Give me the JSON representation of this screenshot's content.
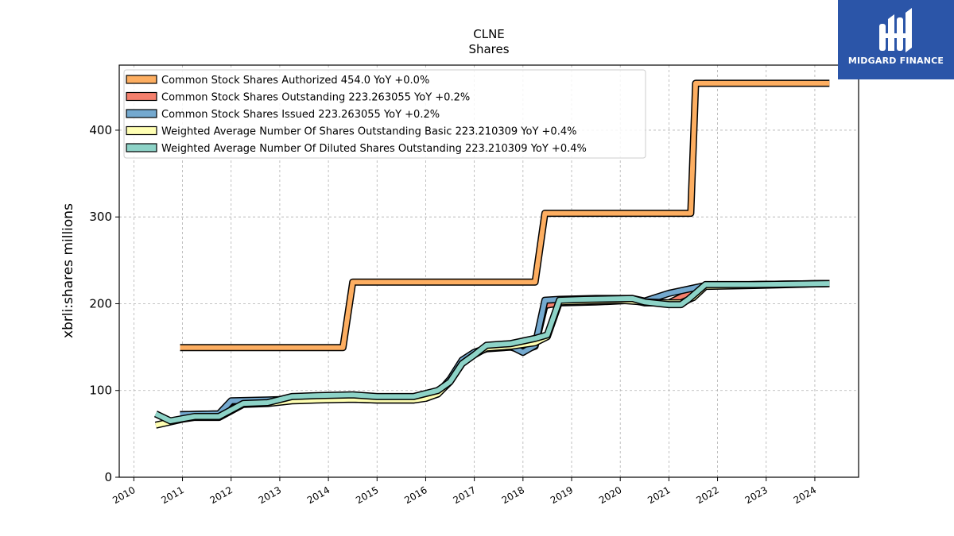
{
  "chart_data": {
    "type": "line",
    "title": "CLNE",
    "subtitle": "Shares",
    "xlabel": "",
    "ylabel": "xbrli:shares millions",
    "xlim": [
      2009.7,
      2024.9
    ],
    "ylim": [
      0,
      475
    ],
    "x_ticks": [
      "2010",
      "2011",
      "2012",
      "2013",
      "2014",
      "2015",
      "2016",
      "2017",
      "2018",
      "2019",
      "2020",
      "2021",
      "2022",
      "2023",
      "2024"
    ],
    "y_ticks": [
      "0",
      "100",
      "200",
      "300",
      "400"
    ],
    "grid": true,
    "legend_position": "top-left",
    "series": [
      {
        "name": "Common Stock Shares Authorized",
        "legend": "Common Stock Shares Authorized  454.0 YoY +0.0%",
        "color": "#fdae61",
        "x": [
          2010.95,
          2014.3,
          2014.5,
          2018.25,
          2018.45,
          2021.45,
          2021.55,
          2024.3
        ],
        "y": [
          149.5,
          149.5,
          225,
          225,
          304.2,
          304.2,
          454,
          454
        ]
      },
      {
        "name": "Common Stock Shares Outstanding",
        "legend": "Common Stock Shares Outstanding  223.263055 YoY +0.2%",
        "color": "#f4806d",
        "x": [
          2010.95,
          2011.75,
          2012.0,
          2012.75,
          2013.25,
          2013.75,
          2014.5,
          2015.0,
          2015.75,
          2016.25,
          2016.5,
          2016.75,
          2017.0,
          2017.25,
          2017.75,
          2018.0,
          2018.25,
          2018.45,
          2018.75,
          2019.5,
          2020.25,
          2020.5,
          2021.0,
          2021.75,
          2022.75,
          2024.3
        ],
        "y": [
          72,
          73,
          87,
          88,
          89,
          90,
          90,
          89,
          89,
          96,
          112,
          134,
          143,
          148,
          150,
          146,
          151,
          198,
          201,
          202,
          204,
          201,
          201,
          221,
          222,
          223.3
        ]
      },
      {
        "name": "Common Stock Shares Issued",
        "legend": "Common Stock Shares Issued  223.263055 YoY +0.2%",
        "color": "#74a9cf",
        "x": [
          2010.95,
          2011.75,
          2012.0,
          2012.75,
          2013.25,
          2013.75,
          2014.5,
          2015.0,
          2015.75,
          2016.25,
          2016.5,
          2016.75,
          2017.0,
          2017.25,
          2017.75,
          2018.0,
          2018.25,
          2018.45,
          2018.75,
          2019.5,
          2020.25,
          2020.5,
          2021.0,
          2021.75,
          2022.75,
          2024.3
        ],
        "y": [
          72,
          73,
          88,
          89,
          90,
          91,
          91,
          90,
          90,
          97,
          113,
          135,
          144,
          149,
          151,
          144,
          152,
          204,
          205,
          206,
          206,
          203,
          212,
          221,
          222,
          223.3
        ]
      },
      {
        "name": "Weighted Average Number Of Shares Outstanding Basic",
        "legend": "Weighted Average Number Of Shares Outstanding Basic  223.210309 YoY +0.4%",
        "color": "#ffffb3",
        "x": [
          2010.45,
          2011.0,
          2011.25,
          2011.75,
          2012.25,
          2012.75,
          2013.25,
          2013.75,
          2014.5,
          2015.0,
          2015.75,
          2016.0,
          2016.25,
          2016.5,
          2016.75,
          2017.0,
          2017.25,
          2017.75,
          2018.25,
          2018.5,
          2018.75,
          2019.25,
          2020.0,
          2020.5,
          2021.0,
          2021.25,
          2021.5,
          2021.75,
          2022.75,
          2024.3
        ],
        "y": [
          60,
          67,
          69,
          69,
          84,
          85,
          88,
          89,
          90,
          89,
          89,
          91,
          96,
          110,
          131,
          141,
          149,
          151,
          155,
          162,
          202,
          203,
          204,
          202,
          201,
          201,
          207,
          220,
          221,
          223.2
        ]
      },
      {
        "name": "Weighted Average Number Of Diluted Shares Outstanding",
        "legend": "Weighted Average Number Of Diluted Shares Outstanding  223.210309 YoY +0.4%",
        "color": "#8dd3c7",
        "x": [
          2010.45,
          2010.75,
          2011.25,
          2011.75,
          2012.25,
          2012.75,
          2013.25,
          2013.75,
          2014.5,
          2015.0,
          2015.75,
          2016.25,
          2016.5,
          2016.75,
          2017.0,
          2017.25,
          2017.5,
          2017.75,
          2018.25,
          2018.5,
          2018.75,
          2019.25,
          2020.25,
          2020.5,
          2021.0,
          2021.25,
          2021.4,
          2021.75,
          2022.75,
          2024.3
        ],
        "y": [
          73,
          65,
          70,
          70,
          85,
          86,
          93,
          94,
          95,
          93,
          93,
          100,
          110,
          131,
          141,
          152,
          153,
          154,
          160,
          164,
          204,
          205,
          206,
          202,
          199,
          199,
          205,
          222,
          222,
          223.2
        ]
      }
    ]
  },
  "brand": {
    "name": "MIDGARD FINANCE",
    "icon": "midgard-finance-logo-icon",
    "background": "#2b55a8"
  }
}
